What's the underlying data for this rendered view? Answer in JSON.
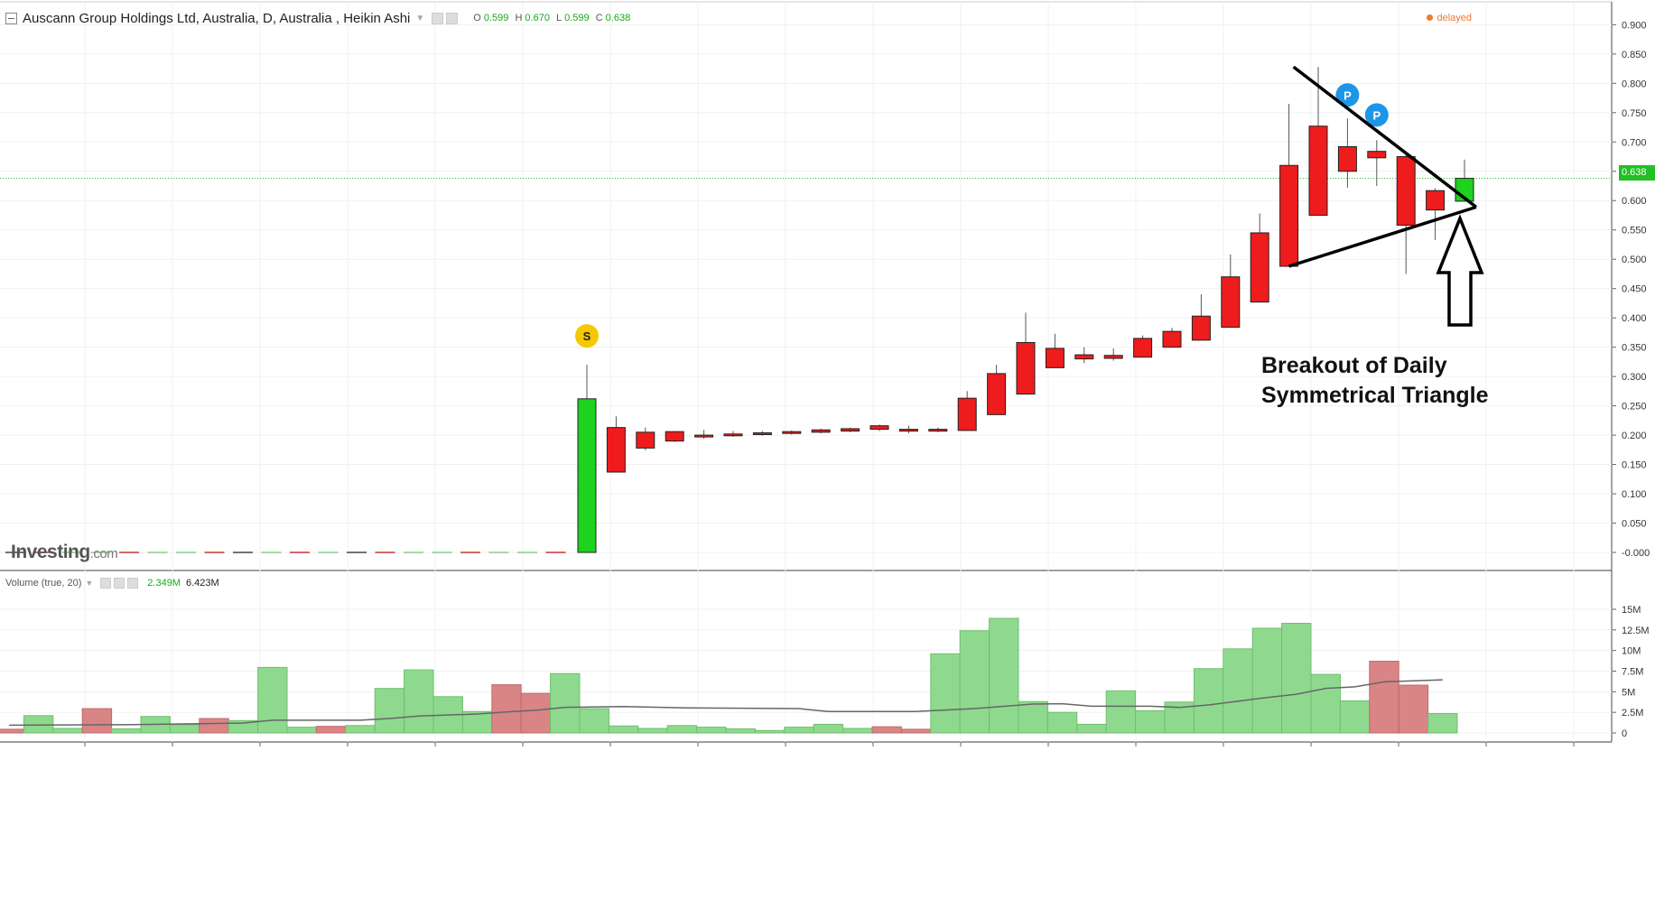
{
  "header": {
    "title": "Auscann Group Holdings Ltd, Australia, D, Australia , Heikin Ashi",
    "ohlc": [
      {
        "key": "O",
        "value": "0.599"
      },
      {
        "key": "H",
        "value": "0.670"
      },
      {
        "key": "L",
        "value": "0.599"
      },
      {
        "key": "C",
        "value": "0.638"
      }
    ],
    "status": "delayed"
  },
  "volume_header": {
    "label": "Volume (true, 20)",
    "value1": "2.349M",
    "value2": "6.423M"
  },
  "logo": {
    "brand": "Investing",
    "suffix": ".com"
  },
  "annotation": {
    "line1": "Breakout of Daily",
    "line2": "Symmetrical Triangle"
  },
  "last_price_label": "0.638",
  "colors": {
    "up": "#1ed31e",
    "down": "#ee1c1c",
    "vol_up": "#8fd98f",
    "vol_down": "#d98585",
    "last_price_line": "#22c022",
    "marker_sell": "#f5c800",
    "marker_pivot": "#1e96e8"
  },
  "chart_data": [
    {
      "type": "candlestick",
      "style": "Heikin Ashi",
      "ylim": [
        0,
        0.9
      ],
      "y_ticks": [
        "0.900",
        "0.850",
        "0.800",
        "0.750",
        "0.700",
        "0.650",
        "0.600",
        "0.550",
        "0.500",
        "0.450",
        "0.400",
        "0.350",
        "0.300",
        "0.250",
        "0.200",
        "0.150",
        "0.100",
        "0.050",
        "-0.000"
      ],
      "grid": true,
      "flat_pre_listing_bars": 20,
      "candles": [
        {
          "o": 0.0,
          "h": 0.32,
          "l": 0.0,
          "c": 0.262
        },
        {
          "o": 0.213,
          "h": 0.232,
          "l": 0.137,
          "c": 0.137
        },
        {
          "o": 0.205,
          "h": 0.213,
          "l": 0.174,
          "c": 0.178
        },
        {
          "o": 0.206,
          "h": 0.207,
          "l": 0.188,
          "c": 0.19
        },
        {
          "o": 0.2,
          "h": 0.209,
          "l": 0.194,
          "c": 0.197
        },
        {
          "o": 0.202,
          "h": 0.207,
          "l": 0.197,
          "c": 0.199
        },
        {
          "o": 0.204,
          "h": 0.207,
          "l": 0.199,
          "c": 0.201
        },
        {
          "o": 0.206,
          "h": 0.208,
          "l": 0.201,
          "c": 0.203
        },
        {
          "o": 0.209,
          "h": 0.211,
          "l": 0.203,
          "c": 0.205
        },
        {
          "o": 0.211,
          "h": 0.213,
          "l": 0.205,
          "c": 0.207
        },
        {
          "o": 0.216,
          "h": 0.218,
          "l": 0.207,
          "c": 0.21
        },
        {
          "o": 0.21,
          "h": 0.216,
          "l": 0.203,
          "c": 0.209
        },
        {
          "o": 0.21,
          "h": 0.213,
          "l": 0.205,
          "c": 0.207
        },
        {
          "o": 0.263,
          "h": 0.275,
          "l": 0.208,
          "c": 0.208
        },
        {
          "o": 0.305,
          "h": 0.32,
          "l": 0.235,
          "c": 0.235
        },
        {
          "o": 0.358,
          "h": 0.409,
          "l": 0.27,
          "c": 0.27
        },
        {
          "o": 0.348,
          "h": 0.373,
          "l": 0.315,
          "c": 0.315
        },
        {
          "o": 0.337,
          "h": 0.35,
          "l": 0.323,
          "c": 0.33
        },
        {
          "o": 0.336,
          "h": 0.348,
          "l": 0.327,
          "c": 0.331
        },
        {
          "o": 0.365,
          "h": 0.37,
          "l": 0.333,
          "c": 0.333
        },
        {
          "o": 0.377,
          "h": 0.383,
          "l": 0.35,
          "c": 0.35
        },
        {
          "o": 0.403,
          "h": 0.44,
          "l": 0.362,
          "c": 0.362
        },
        {
          "o": 0.47,
          "h": 0.508,
          "l": 0.384,
          "c": 0.384
        },
        {
          "o": 0.545,
          "h": 0.578,
          "l": 0.427,
          "c": 0.427
        },
        {
          "o": 0.66,
          "h": 0.765,
          "l": 0.488,
          "c": 0.488
        },
        {
          "o": 0.727,
          "h": 0.828,
          "l": 0.575,
          "c": 0.575
        },
        {
          "o": 0.692,
          "h": 0.74,
          "l": 0.622,
          "c": 0.65
        },
        {
          "o": 0.684,
          "h": 0.703,
          "l": 0.625,
          "c": 0.673
        },
        {
          "o": 0.675,
          "h": 0.682,
          "l": 0.475,
          "c": 0.558
        },
        {
          "o": 0.617,
          "h": 0.621,
          "l": 0.533,
          "c": 0.584
        },
        {
          "o": 0.599,
          "h": 0.67,
          "l": 0.599,
          "c": 0.638
        }
      ],
      "markers": [
        {
          "label": "S",
          "candle_index": 0
        },
        {
          "label": "P",
          "candle_index": 26
        },
        {
          "label": "P",
          "candle_index": 27
        }
      ],
      "last_price": 0.638
    },
    {
      "type": "bar",
      "title": "Volume (true, 20)",
      "ylim": [
        0,
        15
      ],
      "y_ticks": [
        "15M",
        "12.5M",
        "10M",
        "7.5M",
        "5M",
        "2.5M",
        "0"
      ],
      "units": "M",
      "bars": [
        {
          "v": 0.45,
          "dir": "down"
        },
        {
          "v": 2.1,
          "dir": "up"
        },
        {
          "v": 0.55,
          "dir": "up"
        },
        {
          "v": 2.95,
          "dir": "down"
        },
        {
          "v": 0.5,
          "dir": "up"
        },
        {
          "v": 2.0,
          "dir": "up"
        },
        {
          "v": 1.0,
          "dir": "up"
        },
        {
          "v": 1.75,
          "dir": "down"
        },
        {
          "v": 1.5,
          "dir": "up"
        },
        {
          "v": 7.95,
          "dir": "up"
        },
        {
          "v": 0.7,
          "dir": "up"
        },
        {
          "v": 0.8,
          "dir": "down"
        },
        {
          "v": 0.9,
          "dir": "up"
        },
        {
          "v": 5.4,
          "dir": "up"
        },
        {
          "v": 7.65,
          "dir": "up"
        },
        {
          "v": 4.4,
          "dir": "up"
        },
        {
          "v": 2.6,
          "dir": "up"
        },
        {
          "v": 5.85,
          "dir": "down"
        },
        {
          "v": 4.8,
          "dir": "down"
        },
        {
          "v": 7.2,
          "dir": "up"
        },
        {
          "v": 2.95,
          "dir": "up"
        },
        {
          "v": 0.85,
          "dir": "up"
        },
        {
          "v": 0.55,
          "dir": "up"
        },
        {
          "v": 0.9,
          "dir": "up"
        },
        {
          "v": 0.7,
          "dir": "up"
        },
        {
          "v": 0.5,
          "dir": "up"
        },
        {
          "v": 0.3,
          "dir": "up"
        },
        {
          "v": 0.7,
          "dir": "up"
        },
        {
          "v": 1.05,
          "dir": "up"
        },
        {
          "v": 0.55,
          "dir": "up"
        },
        {
          "v": 0.75,
          "dir": "down"
        },
        {
          "v": 0.45,
          "dir": "down"
        },
        {
          "v": 9.6,
          "dir": "up"
        },
        {
          "v": 12.4,
          "dir": "up"
        },
        {
          "v": 13.9,
          "dir": "up"
        },
        {
          "v": 3.8,
          "dir": "up"
        },
        {
          "v": 2.5,
          "dir": "up"
        },
        {
          "v": 1.05,
          "dir": "up"
        },
        {
          "v": 5.1,
          "dir": "up"
        },
        {
          "v": 2.7,
          "dir": "up"
        },
        {
          "v": 3.75,
          "dir": "up"
        },
        {
          "v": 7.8,
          "dir": "up"
        },
        {
          "v": 10.2,
          "dir": "up"
        },
        {
          "v": 12.7,
          "dir": "up"
        },
        {
          "v": 13.3,
          "dir": "up"
        },
        {
          "v": 7.1,
          "dir": "up"
        },
        {
          "v": 3.9,
          "dir": "up"
        },
        {
          "v": 8.7,
          "dir": "down"
        },
        {
          "v": 5.8,
          "dir": "down"
        },
        {
          "v": 2.35,
          "dir": "up"
        }
      ],
      "ma_points": [
        {
          "i": 0,
          "v": 0.95
        },
        {
          "i": 4,
          "v": 1.0
        },
        {
          "i": 8,
          "v": 1.2
        },
        {
          "i": 9,
          "v": 1.55
        },
        {
          "i": 12,
          "v": 1.55
        },
        {
          "i": 13,
          "v": 1.75
        },
        {
          "i": 14,
          "v": 2.05
        },
        {
          "i": 16,
          "v": 2.3
        },
        {
          "i": 17,
          "v": 2.55
        },
        {
          "i": 18,
          "v": 2.75
        },
        {
          "i": 19,
          "v": 3.1
        },
        {
          "i": 21,
          "v": 3.2
        },
        {
          "i": 23,
          "v": 3.05
        },
        {
          "i": 27,
          "v": 2.95
        },
        {
          "i": 28,
          "v": 2.6
        },
        {
          "i": 31,
          "v": 2.6
        },
        {
          "i": 33,
          "v": 2.95
        },
        {
          "i": 35,
          "v": 3.5
        },
        {
          "i": 36,
          "v": 3.55
        },
        {
          "i": 37,
          "v": 3.25
        },
        {
          "i": 39,
          "v": 3.25
        },
        {
          "i": 40,
          "v": 3.1
        },
        {
          "i": 41,
          "v": 3.4
        },
        {
          "i": 43,
          "v": 4.3
        },
        {
          "i": 44,
          "v": 4.7
        },
        {
          "i": 45,
          "v": 5.4
        },
        {
          "i": 46,
          "v": 5.6
        },
        {
          "i": 47,
          "v": 6.2
        },
        {
          "i": 49,
          "v": 6.45
        }
      ]
    }
  ]
}
